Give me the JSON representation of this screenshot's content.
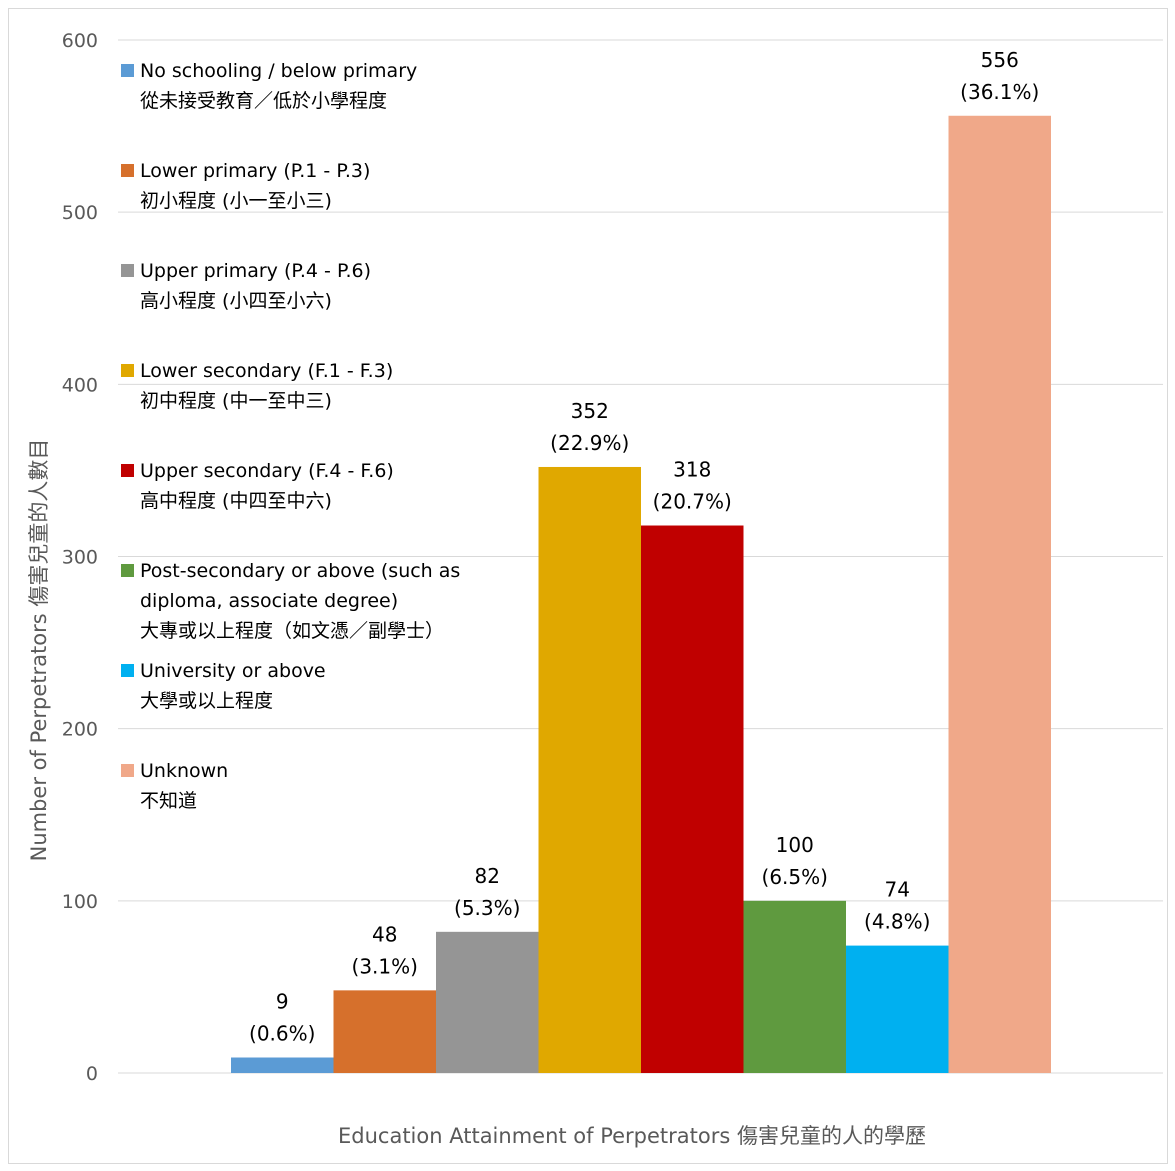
{
  "chart_data": {
    "type": "bar",
    "xlabel": "Education Attainment of Perpetrators 傷害兒童的人的學歷",
    "ylabel": "Number of Perpetrators 傷害兒童的人數目",
    "ylim": [
      0,
      600
    ],
    "yticks": [
      0,
      100,
      200,
      300,
      400,
      500,
      600
    ],
    "grid": true,
    "legend_position": "top-left",
    "series": [
      {
        "name_lines": [
          "No schooling / below primary",
          "從未接受教育／低於小學程度"
        ],
        "value": 9,
        "pct": "(0.6%)",
        "color": "#5b9bd5"
      },
      {
        "name_lines": [
          "Lower primary (P.1 - P.3)",
          "初小程度 (小一至小三)"
        ],
        "value": 48,
        "pct": "(3.1%)",
        "color": "#d6702c"
      },
      {
        "name_lines": [
          "Upper primary (P.4 - P.6)",
          "高小程度 (小四至小六)"
        ],
        "value": 82,
        "pct": "(5.3%)",
        "color": "#959595"
      },
      {
        "name_lines": [
          "Lower secondary (F.1 - F.3)",
          "初中程度 (中一至中三)"
        ],
        "value": 352,
        "pct": "(22.9%)",
        "color": "#e0a800"
      },
      {
        "name_lines": [
          "Upper secondary (F.4 - F.6)",
          "高中程度 (中四至中六)"
        ],
        "value": 318,
        "pct": "(20.7%)",
        "color": "#c00000"
      },
      {
        "name_lines": [
          "Post-secondary or above (such as",
          "diploma, associate degree)",
          "大專或以上程度（如文憑／副學士）"
        ],
        "value": 100,
        "pct": "(6.5%)",
        "color": "#5f9a3f"
      },
      {
        "name_lines": [
          "University or above",
          "大學或以上程度"
        ],
        "value": 74,
        "pct": "(4.8%)",
        "color": "#00b0f0"
      },
      {
        "name_lines": [
          "Unknown",
          "不知道"
        ],
        "value": 556,
        "pct": "(36.1%)",
        "color": "#f0a889"
      }
    ]
  }
}
